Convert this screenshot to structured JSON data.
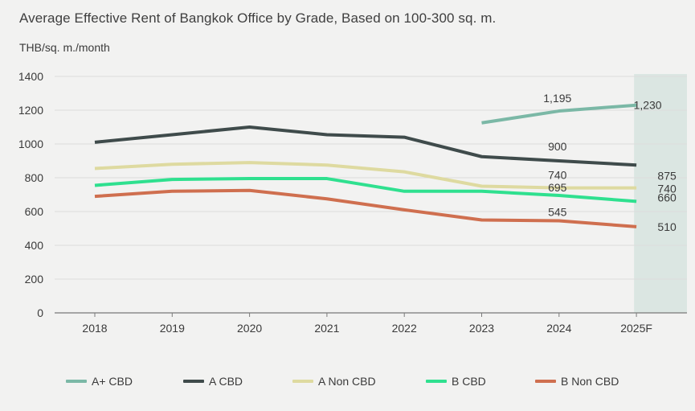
{
  "chart_data": {
    "type": "line",
    "title": "Average Effective Rent of Bangkok Office by Grade, Based on 100-300 sq. m.",
    "ylabel": "THB/sq. m./month",
    "xlabel": "",
    "categories": [
      "2018",
      "2019",
      "2020",
      "2021",
      "2022",
      "2023",
      "2024",
      "2025F"
    ],
    "y_ticks": [
      "0",
      "200",
      "400",
      "600",
      "800",
      "1000",
      "1200",
      "1400"
    ],
    "ylim": [
      0,
      1400
    ],
    "grid": true,
    "highlighted_category": "2025F",
    "legend_position": "bottom",
    "series": [
      {
        "name": "A+ CBD",
        "color": "#7bb8a6",
        "values": [
          null,
          null,
          null,
          null,
          null,
          1125,
          1195,
          1230
        ],
        "labels": {
          "6": "1,195",
          "7": "1,230"
        }
      },
      {
        "name": "A CBD",
        "color": "#3f4b4b",
        "values": [
          1010,
          1055,
          1100,
          1055,
          1040,
          925,
          900,
          875
        ],
        "labels": {
          "6": "900",
          "7": "875"
        }
      },
      {
        "name": "A Non CBD",
        "color": "#dedaa0",
        "values": [
          855,
          880,
          890,
          875,
          835,
          750,
          740,
          740
        ],
        "labels": {
          "6": "740",
          "7": "740"
        }
      },
      {
        "name": "B CBD",
        "color": "#2fe08f",
        "values": [
          755,
          790,
          795,
          795,
          720,
          720,
          695,
          660
        ],
        "labels": {
          "6": "695",
          "7": "660"
        }
      },
      {
        "name": "B Non CBD",
        "color": "#cf6f4f",
        "values": [
          690,
          720,
          725,
          675,
          610,
          550,
          545,
          510
        ],
        "labels": {
          "6": "545",
          "7": "510"
        }
      }
    ]
  }
}
